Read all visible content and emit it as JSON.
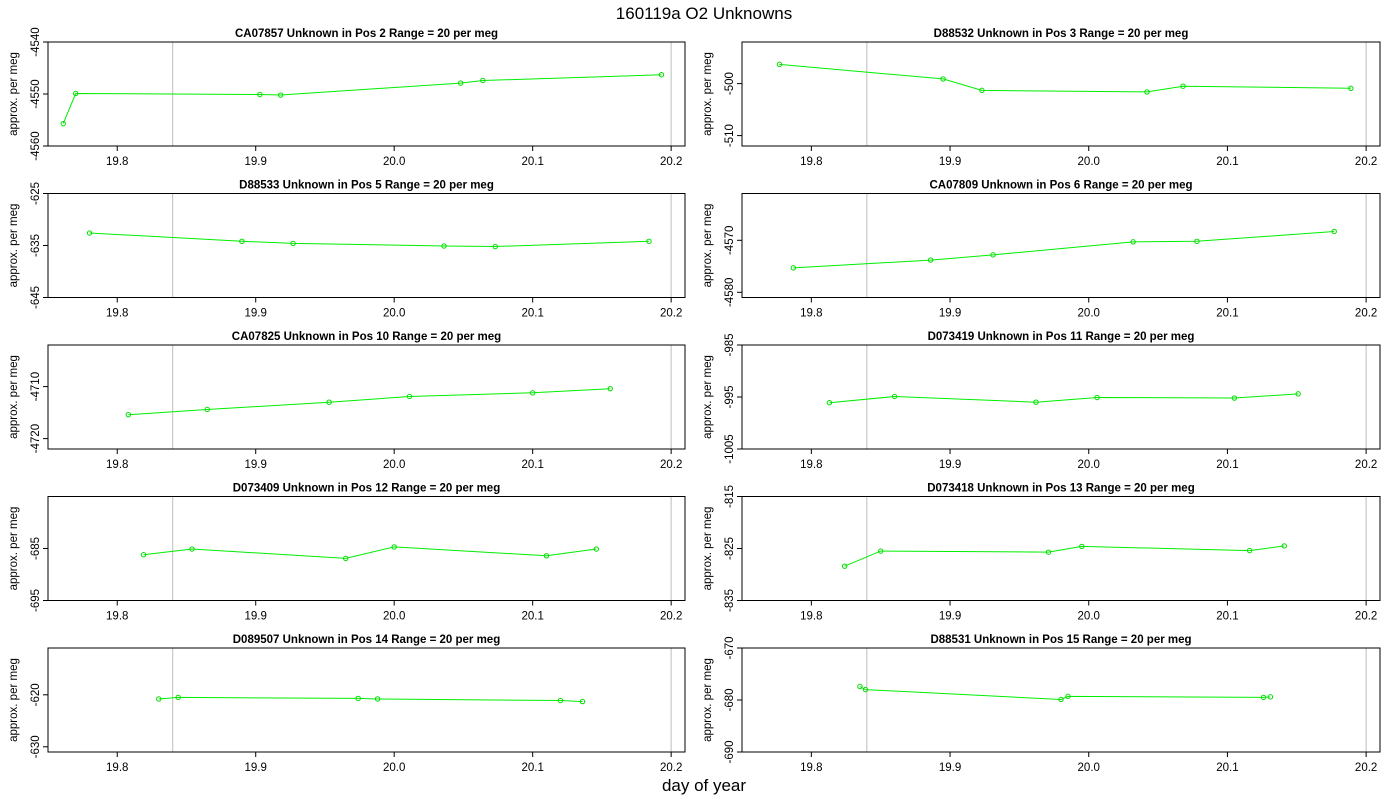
{
  "title": "160119a  O2 Unknowns",
  "xlabel": "day of year",
  "chart_data": [
    {
      "type": "line",
      "title": "CA07857    Unknown in Pos 2         Range = 20 per meg",
      "ylabel": "approx. per meg",
      "xlim": [
        19.75,
        20.21
      ],
      "ylim": [
        -4560,
        -4540
      ],
      "yticks": [
        -4560,
        -4550,
        -4540
      ],
      "xticks": [
        19.8,
        19.9,
        20.0,
        20.1,
        20.2
      ],
      "vlines": [
        19.84,
        20.2
      ],
      "x": [
        19.761,
        19.77,
        19.903,
        19.918,
        20.048,
        20.064,
        20.193
      ],
      "y": [
        -4555.7,
        -4549.9,
        -4550.1,
        -4550.2,
        -4547.9,
        -4547.4,
        -4546.3
      ]
    },
    {
      "type": "line",
      "title": "D88532    Unknown in Pos 3         Range = 20 per meg",
      "ylabel": "approx. per meg",
      "xlim": [
        19.75,
        20.21
      ],
      "ylim": [
        -512,
        -492
      ],
      "yticks": [
        -510,
        -500
      ],
      "xticks": [
        19.8,
        19.9,
        20.0,
        20.1,
        20.2
      ],
      "vlines": [
        19.84,
        20.2
      ],
      "x": [
        19.777,
        19.895,
        19.923,
        20.042,
        20.068,
        20.189
      ],
      "y": [
        -496.3,
        -499.1,
        -501.3,
        -501.6,
        -500.5,
        -500.9
      ]
    },
    {
      "type": "line",
      "title": "D88533    Unknown in Pos 5         Range = 20 per meg",
      "ylabel": "approx. per meg",
      "xlim": [
        19.75,
        20.21
      ],
      "ylim": [
        -645,
        -625
      ],
      "yticks": [
        -645,
        -635,
        -625
      ],
      "xticks": [
        19.8,
        19.9,
        20.0,
        20.1,
        20.2
      ],
      "vlines": [
        19.84,
        20.2
      ],
      "x": [
        19.78,
        19.89,
        19.927,
        20.036,
        20.073,
        20.184
      ],
      "y": [
        -632.6,
        -634.2,
        -634.6,
        -635.1,
        -635.2,
        -634.2
      ]
    },
    {
      "type": "line",
      "title": "CA07809    Unknown in Pos 6         Range = 20 per meg",
      "ylabel": "approx. per meg",
      "xlim": [
        19.75,
        20.21
      ],
      "ylim": [
        -4581,
        -4561
      ],
      "yticks": [
        -4580,
        -4570
      ],
      "xticks": [
        19.8,
        19.9,
        20.0,
        20.1,
        20.2
      ],
      "vlines": [
        19.84,
        20.2
      ],
      "x": [
        19.787,
        19.886,
        19.931,
        20.032,
        20.078,
        20.177
      ],
      "y": [
        -4575.3,
        -4573.8,
        -4572.8,
        -4570.3,
        -4570.2,
        -4568.3
      ]
    },
    {
      "type": "line",
      "title": "CA07825    Unknown in Pos 10         Range = 20 per meg",
      "ylabel": "approx. per meg",
      "xlim": [
        19.75,
        20.21
      ],
      "ylim": [
        -4722,
        -4702
      ],
      "yticks": [
        -4720,
        -4710
      ],
      "xticks": [
        19.8,
        19.9,
        20.0,
        20.1,
        20.2
      ],
      "vlines": [
        19.84,
        20.2
      ],
      "x": [
        19.808,
        19.865,
        19.953,
        20.011,
        20.1,
        20.156
      ],
      "y": [
        -4715.4,
        -4714.4,
        -4713,
        -4711.9,
        -4711.2,
        -4710.4
      ]
    },
    {
      "type": "line",
      "title": "D073419    Unknown in Pos 11         Range = 20 per meg",
      "ylabel": "approx. per meg",
      "xlim": [
        19.75,
        20.21
      ],
      "ylim": [
        -1005,
        -985
      ],
      "yticks": [
        -1005,
        -995,
        -985
      ],
      "xticks": [
        19.8,
        19.9,
        20.0,
        20.1,
        20.2
      ],
      "vlines": [
        19.84,
        20.2
      ],
      "x": [
        19.813,
        19.86,
        19.962,
        20.006,
        20.105,
        20.151
      ],
      "y": [
        -996.1,
        -994.9,
        -996,
        -995.1,
        -995.2,
        -994.4
      ]
    },
    {
      "type": "line",
      "title": "D073409    Unknown in Pos 12         Range = 20 per meg",
      "ylabel": "approx. per meg",
      "xlim": [
        19.75,
        20.21
      ],
      "ylim": [
        -695,
        -675
      ],
      "yticks": [
        -695,
        -685
      ],
      "xticks": [
        19.8,
        19.9,
        20.0,
        20.1,
        20.2
      ],
      "vlines": [
        19.84,
        20.2
      ],
      "x": [
        19.819,
        19.854,
        19.965,
        20.0,
        20.11,
        20.146
      ],
      "y": [
        -686.2,
        -685.1,
        -686.9,
        -684.7,
        -686.4,
        -685.1
      ]
    },
    {
      "type": "line",
      "title": "D073418    Unknown in Pos 13         Range = 20 per meg",
      "ylabel": "approx. per meg",
      "xlim": [
        19.75,
        20.21
      ],
      "ylim": [
        -835,
        -815
      ],
      "yticks": [
        -835,
        -825,
        -815
      ],
      "xticks": [
        19.8,
        19.9,
        20.0,
        20.1,
        20.2
      ],
      "vlines": [
        19.84,
        20.2
      ],
      "x": [
        19.824,
        19.85,
        19.971,
        19.995,
        20.116,
        20.141
      ],
      "y": [
        -828.4,
        -825.5,
        -825.7,
        -824.6,
        -825.4,
        -824.5
      ]
    },
    {
      "type": "line",
      "title": "D089507    Unknown in Pos 14         Range = 20 per meg",
      "ylabel": "approx. per meg",
      "xlim": [
        19.75,
        20.21
      ],
      "ylim": [
        -631,
        -611
      ],
      "yticks": [
        -630,
        -620
      ],
      "xticks": [
        19.8,
        19.9,
        20.0,
        20.1,
        20.2
      ],
      "vlines": [
        19.84,
        20.2
      ],
      "x": [
        19.83,
        19.844,
        19.974,
        19.988,
        20.12,
        20.136
      ],
      "y": [
        -620.8,
        -620.5,
        -620.7,
        -620.8,
        -621.1,
        -621.3
      ]
    },
    {
      "type": "line",
      "title": "D88531    Unknown in Pos 15         Range = 20 per meg",
      "ylabel": "approx. per meg",
      "xlim": [
        19.75,
        20.21
      ],
      "ylim": [
        -690,
        -670
      ],
      "yticks": [
        -690,
        -680,
        -670
      ],
      "xticks": [
        19.8,
        19.9,
        20.0,
        20.1,
        20.2
      ],
      "vlines": [
        19.84,
        20.2
      ],
      "x": [
        19.835,
        19.839,
        19.98,
        19.985,
        20.126,
        20.131
      ],
      "y": [
        -677.4,
        -678,
        -679.9,
        -679.3,
        -679.5,
        -679.4
      ]
    }
  ]
}
